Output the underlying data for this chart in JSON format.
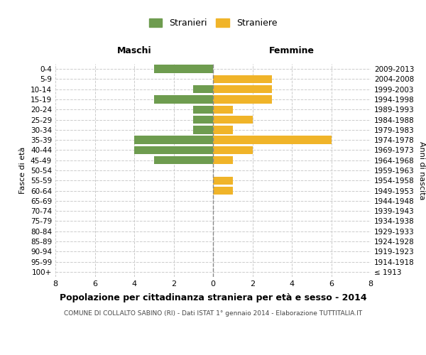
{
  "age_groups": [
    "100+",
    "95-99",
    "90-94",
    "85-89",
    "80-84",
    "75-79",
    "70-74",
    "65-69",
    "60-64",
    "55-59",
    "50-54",
    "45-49",
    "40-44",
    "35-39",
    "30-34",
    "25-29",
    "20-24",
    "15-19",
    "10-14",
    "5-9",
    "0-4"
  ],
  "birth_years": [
    "≤ 1913",
    "1914-1918",
    "1919-1923",
    "1924-1928",
    "1929-1933",
    "1934-1938",
    "1939-1943",
    "1944-1948",
    "1949-1953",
    "1954-1958",
    "1959-1963",
    "1964-1968",
    "1969-1973",
    "1974-1978",
    "1979-1983",
    "1984-1988",
    "1989-1993",
    "1994-1998",
    "1999-2003",
    "2004-2008",
    "2009-2013"
  ],
  "maschi": [
    0,
    0,
    0,
    0,
    0,
    0,
    0,
    0,
    0,
    0,
    0,
    3,
    4,
    4,
    1,
    1,
    1,
    3,
    1,
    0,
    3
  ],
  "femmine": [
    0,
    0,
    0,
    0,
    0,
    0,
    0,
    0,
    1,
    1,
    0,
    1,
    2,
    6,
    1,
    2,
    1,
    3,
    3,
    3,
    0
  ],
  "male_color": "#6e9c4f",
  "female_color": "#f0b429",
  "background_color": "#ffffff",
  "grid_color": "#cccccc",
  "title": "Popolazione per cittadinanza straniera per età e sesso - 2014",
  "subtitle": "COMUNE DI COLLALTO SABINO (RI) - Dati ISTAT 1° gennaio 2014 - Elaborazione TUTTITALIA.IT",
  "xlabel_left": "Maschi",
  "xlabel_right": "Femmine",
  "ylabel_left": "Fasce di età",
  "ylabel_right": "Anni di nascita",
  "legend_male": "Stranieri",
  "legend_female": "Straniere",
  "xlim": 8,
  "bar_height": 0.8
}
